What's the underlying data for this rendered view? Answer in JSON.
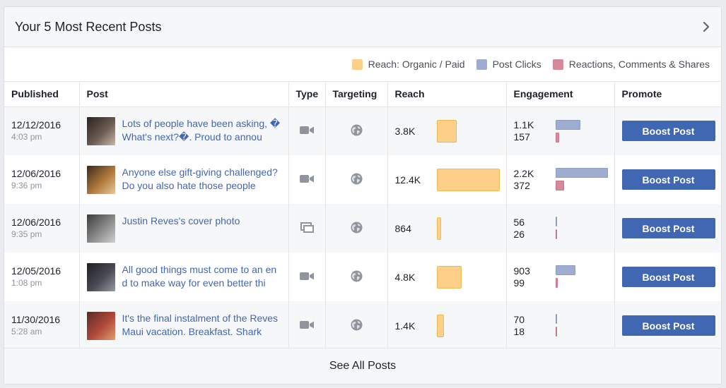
{
  "panel": {
    "title": "Your 5 Most Recent Posts",
    "chevron_icon": "chevron-right-icon"
  },
  "legend": {
    "reach": {
      "label": "Reach: Organic / Paid",
      "color": "#fcd089"
    },
    "clicks": {
      "label": "Post Clicks",
      "color": "#9daccf"
    },
    "reactions": {
      "label": "Reactions, Comments & Shares",
      "color": "#d6899b"
    }
  },
  "columns": {
    "published": "Published",
    "post": "Post",
    "type": "Type",
    "targeting": "Targeting",
    "reach": "Reach",
    "engagement": "Engagement",
    "promote": "Promote"
  },
  "posts": [
    {
      "date": "12/12/2016",
      "time": "4:03 pm",
      "text": "Lots of people have been asking, �What's next?�. Proud to annou",
      "type_icon": "video-icon",
      "targeting_icon": "globe-icon",
      "reach": "3.8K",
      "reach_fraction": 0.31,
      "clicks": "1.1K",
      "reactions": "157",
      "clicks_fraction": 0.47,
      "reactions_fraction": 0.07,
      "boost_label": "Boost Post",
      "thumb_colors": [
        "#2a2320",
        "#6b5a52",
        "#c9b8a8"
      ]
    },
    {
      "date": "12/06/2016",
      "time": "9:36 pm",
      "text": "Anyone else gift-giving challenged? Do you also hate those people",
      "type_icon": "video-icon",
      "targeting_icon": "globe-icon",
      "reach": "12.4K",
      "reach_fraction": 1.0,
      "clicks": "2.2K",
      "reactions": "372",
      "clicks_fraction": 1.0,
      "reactions_fraction": 0.16,
      "boost_label": "Boost Post",
      "thumb_colors": [
        "#3b2a1a",
        "#b07a3c",
        "#e8c89a"
      ]
    },
    {
      "date": "12/06/2016",
      "time": "9:35 pm",
      "text": "Justin Reves's cover photo",
      "type_icon": "photo-icon",
      "targeting_icon": "globe-icon",
      "reach": "864",
      "reach_fraction": 0.07,
      "clicks": "56",
      "reactions": "26",
      "clicks_fraction": 0.02,
      "reactions_fraction": 0.01,
      "boost_label": "Boost Post",
      "thumb_colors": [
        "#3a3a3a",
        "#8c8c8c",
        "#d0d0d0"
      ]
    },
    {
      "date": "12/05/2016",
      "time": "1:08 pm",
      "text": "All good things must come to an end to make way for even better thi",
      "type_icon": "video-icon",
      "targeting_icon": "globe-icon",
      "reach": "4.8K",
      "reach_fraction": 0.39,
      "clicks": "903",
      "reactions": "99",
      "clicks_fraction": 0.38,
      "reactions_fraction": 0.04,
      "boost_label": "Boost Post",
      "thumb_colors": [
        "#1e1e22",
        "#4a4a55",
        "#9a9aa5"
      ]
    },
    {
      "date": "11/30/2016",
      "time": "5:28 am",
      "text": "It's the final instalment of the Reves Maui vacation. Breakfast. Shark",
      "type_icon": "video-icon",
      "targeting_icon": "globe-icon",
      "reach": "1.4K",
      "reach_fraction": 0.11,
      "clicks": "70",
      "reactions": "18",
      "clicks_fraction": 0.03,
      "reactions_fraction": 0.01,
      "boost_label": "Boost Post",
      "thumb_colors": [
        "#5a2a2a",
        "#b04a3a",
        "#e0a070"
      ]
    }
  ],
  "footer": {
    "label": "See All Posts"
  }
}
